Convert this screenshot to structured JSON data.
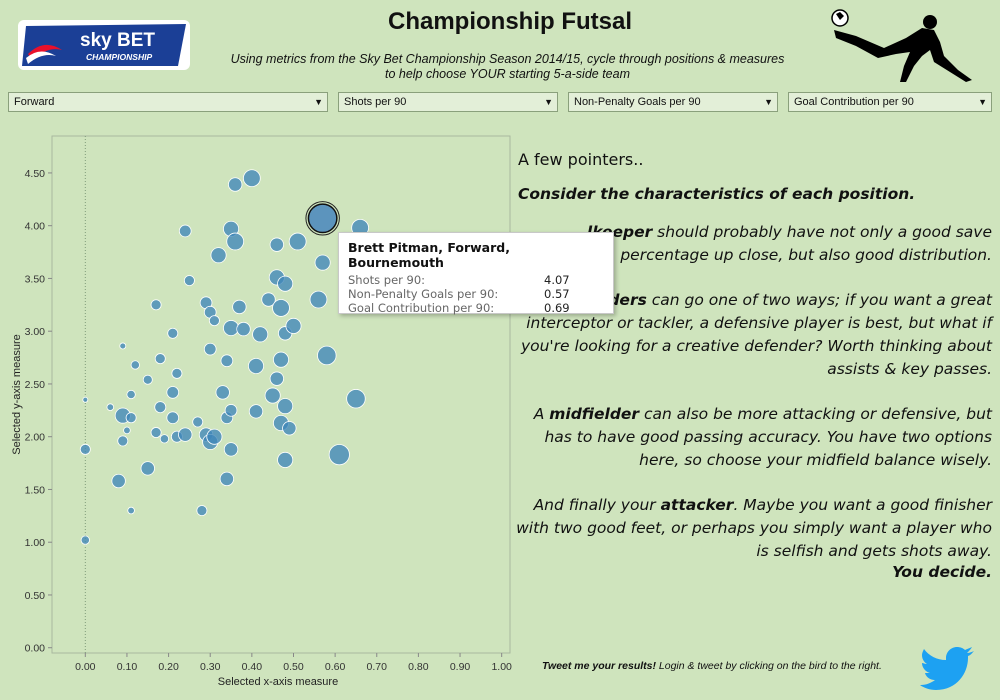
{
  "header": {
    "logo_line1": "sky BET",
    "logo_line2": "CHAMPIONSHIP",
    "title": "Championship Futsal",
    "subtitle_line1": "Using metrics from the Sky Bet Championship Season 2014/15, cycle through positions & measures",
    "subtitle_line2": "to help choose YOUR starting 5-a-side team"
  },
  "filters": [
    {
      "value": "Forward"
    },
    {
      "value": "Shots per 90"
    },
    {
      "value": "Non-Penalty Goals per 90"
    },
    {
      "value": "Goal Contribution per 90"
    }
  ],
  "panel": {
    "heading": "A few pointers..",
    "consider": "Consider the characteristics of each position.",
    "gk_bold": "lkeeper",
    "gk_text": " should probably have not only a good save percentage up close, but also good distribution.",
    "def_bold": "Defenders",
    "def_text": " can go one of two ways; if you want a great interceptor or tackler, a defensive player is best, but what if you're looking for a creative defender? Worth thinking about assists & key passes.",
    "mid_pre": "A ",
    "mid_bold": "midfielder",
    "mid_text": " can also be more attacking or defensive, but has to have good passing accuracy. You have two options here, so choose your midfield balance wisely.",
    "att_pre": "And finally your ",
    "att_bold": "attacker",
    "att_text": ". Maybe you want a good finisher with two good feet, or perhaps you simply want a player who is selfish and gets shots away.",
    "decide": "You decide."
  },
  "tooltip": {
    "title": "Brett Pitman, Forward, Bournemouth",
    "rows": [
      {
        "label": "Shots per 90:",
        "value": "4.07"
      },
      {
        "label": "Non-Penalty Goals per 90:",
        "value": "0.57"
      },
      {
        "label": "Goal Contribution per 90:",
        "value": "0.69"
      }
    ]
  },
  "footer": {
    "tweet_bold": "Tweet me your results!",
    "tweet_text": " Login & tweet by clicking on the bird to the right."
  },
  "colors": {
    "background": "#cfe4bd",
    "bubble": "#3f87b8",
    "brand_blue": "#1b3f96",
    "twitter": "#1da1f2"
  },
  "chart_data": {
    "type": "scatter",
    "xlabel": "Selected x-axis measure",
    "ylabel": "Selected y-axis measure",
    "xlim": [
      -0.08,
      1.02
    ],
    "ylim": [
      -0.05,
      4.85
    ],
    "xticks": [
      "0.00",
      "0.10",
      "0.20",
      "0.30",
      "0.40",
      "0.50",
      "0.60",
      "0.70",
      "0.80",
      "0.90",
      "1.00"
    ],
    "yticks": [
      "0.00",
      "0.50",
      "1.00",
      "1.50",
      "2.00",
      "2.50",
      "3.00",
      "3.50",
      "4.00",
      "4.50"
    ],
    "grid": false,
    "size_measure": "Goal Contribution per 90",
    "highlighted": "Brett Pitman",
    "points": [
      {
        "x": 0.57,
        "y": 4.07,
        "s": 0.69,
        "name": "Brett Pitman"
      },
      {
        "x": 0.0,
        "y": 1.02,
        "s": 0.1
      },
      {
        "x": 0.0,
        "y": 1.88,
        "s": 0.15
      },
      {
        "x": 0.0,
        "y": 2.35,
        "s": 0.0
      },
      {
        "x": 0.06,
        "y": 2.28,
        "s": 0.05
      },
      {
        "x": 0.08,
        "y": 1.58,
        "s": 0.25
      },
      {
        "x": 0.09,
        "y": 2.86,
        "s": 0.03
      },
      {
        "x": 0.09,
        "y": 1.96,
        "s": 0.15
      },
      {
        "x": 0.09,
        "y": 2.2,
        "s": 0.3
      },
      {
        "x": 0.1,
        "y": 2.06,
        "s": 0.05
      },
      {
        "x": 0.11,
        "y": 2.4,
        "s": 0.1
      },
      {
        "x": 0.11,
        "y": 2.18,
        "s": 0.15
      },
      {
        "x": 0.11,
        "y": 1.3,
        "s": 0.05
      },
      {
        "x": 0.12,
        "y": 2.68,
        "s": 0.1
      },
      {
        "x": 0.15,
        "y": 1.7,
        "s": 0.25
      },
      {
        "x": 0.15,
        "y": 2.54,
        "s": 0.12
      },
      {
        "x": 0.17,
        "y": 3.25,
        "s": 0.15
      },
      {
        "x": 0.17,
        "y": 2.04,
        "s": 0.15
      },
      {
        "x": 0.18,
        "y": 2.28,
        "s": 0.18
      },
      {
        "x": 0.18,
        "y": 2.74,
        "s": 0.15
      },
      {
        "x": 0.19,
        "y": 1.98,
        "s": 0.1
      },
      {
        "x": 0.21,
        "y": 2.18,
        "s": 0.2
      },
      {
        "x": 0.21,
        "y": 2.42,
        "s": 0.2
      },
      {
        "x": 0.21,
        "y": 2.98,
        "s": 0.15
      },
      {
        "x": 0.22,
        "y": 2.0,
        "s": 0.18
      },
      {
        "x": 0.22,
        "y": 2.6,
        "s": 0.15
      },
      {
        "x": 0.24,
        "y": 3.95,
        "s": 0.2
      },
      {
        "x": 0.24,
        "y": 2.02,
        "s": 0.25
      },
      {
        "x": 0.25,
        "y": 3.48,
        "s": 0.15
      },
      {
        "x": 0.27,
        "y": 2.14,
        "s": 0.15
      },
      {
        "x": 0.28,
        "y": 1.3,
        "s": 0.15
      },
      {
        "x": 0.29,
        "y": 2.02,
        "s": 0.25
      },
      {
        "x": 0.29,
        "y": 3.27,
        "s": 0.2
      },
      {
        "x": 0.3,
        "y": 2.83,
        "s": 0.2
      },
      {
        "x": 0.3,
        "y": 1.95,
        "s": 0.3
      },
      {
        "x": 0.3,
        "y": 3.18,
        "s": 0.2
      },
      {
        "x": 0.31,
        "y": 3.1,
        "s": 0.15
      },
      {
        "x": 0.31,
        "y": 2.0,
        "s": 0.3
      },
      {
        "x": 0.32,
        "y": 3.72,
        "s": 0.3
      },
      {
        "x": 0.33,
        "y": 2.42,
        "s": 0.25
      },
      {
        "x": 0.34,
        "y": 2.72,
        "s": 0.2
      },
      {
        "x": 0.34,
        "y": 2.18,
        "s": 0.2
      },
      {
        "x": 0.34,
        "y": 1.6,
        "s": 0.25
      },
      {
        "x": 0.35,
        "y": 3.97,
        "s": 0.3
      },
      {
        "x": 0.35,
        "y": 2.25,
        "s": 0.2
      },
      {
        "x": 0.35,
        "y": 1.88,
        "s": 0.25
      },
      {
        "x": 0.35,
        "y": 3.03,
        "s": 0.3
      },
      {
        "x": 0.36,
        "y": 4.39,
        "s": 0.25
      },
      {
        "x": 0.36,
        "y": 3.85,
        "s": 0.35
      },
      {
        "x": 0.37,
        "y": 3.23,
        "s": 0.25
      },
      {
        "x": 0.38,
        "y": 3.02,
        "s": 0.25
      },
      {
        "x": 0.4,
        "y": 4.45,
        "s": 0.35
      },
      {
        "x": 0.41,
        "y": 2.67,
        "s": 0.3
      },
      {
        "x": 0.41,
        "y": 2.24,
        "s": 0.25
      },
      {
        "x": 0.42,
        "y": 2.97,
        "s": 0.3
      },
      {
        "x": 0.44,
        "y": 3.3,
        "s": 0.25
      },
      {
        "x": 0.45,
        "y": 2.39,
        "s": 0.3
      },
      {
        "x": 0.46,
        "y": 3.82,
        "s": 0.25
      },
      {
        "x": 0.46,
        "y": 3.51,
        "s": 0.3
      },
      {
        "x": 0.46,
        "y": 2.55,
        "s": 0.25
      },
      {
        "x": 0.47,
        "y": 3.22,
        "s": 0.35
      },
      {
        "x": 0.47,
        "y": 2.73,
        "s": 0.3
      },
      {
        "x": 0.47,
        "y": 2.13,
        "s": 0.3
      },
      {
        "x": 0.48,
        "y": 1.78,
        "s": 0.3
      },
      {
        "x": 0.48,
        "y": 3.45,
        "s": 0.3
      },
      {
        "x": 0.48,
        "y": 2.98,
        "s": 0.25
      },
      {
        "x": 0.48,
        "y": 2.29,
        "s": 0.3
      },
      {
        "x": 0.49,
        "y": 2.08,
        "s": 0.25
      },
      {
        "x": 0.5,
        "y": 3.05,
        "s": 0.3
      },
      {
        "x": 0.51,
        "y": 3.85,
        "s": 0.35
      },
      {
        "x": 0.56,
        "y": 3.3,
        "s": 0.35
      },
      {
        "x": 0.57,
        "y": 3.65,
        "s": 0.3
      },
      {
        "x": 0.58,
        "y": 2.77,
        "s": 0.4
      },
      {
        "x": 0.61,
        "y": 1.83,
        "s": 0.45
      },
      {
        "x": 0.65,
        "y": 2.36,
        "s": 0.4
      },
      {
        "x": 0.66,
        "y": 3.98,
        "s": 0.35
      }
    ]
  }
}
